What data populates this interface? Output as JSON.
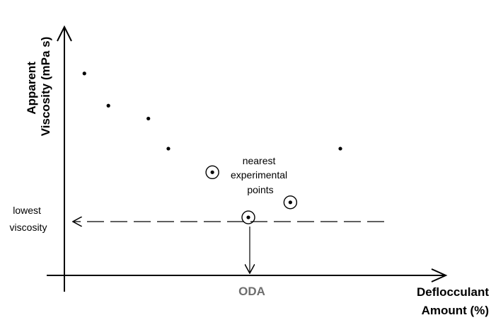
{
  "chart_data": {
    "type": "scatter",
    "title": "",
    "xlabel_lines": [
      "Deflocculant",
      "Amount (%)"
    ],
    "ylabel_lines": [
      "Apparent",
      "Viscosity (mPa s)"
    ],
    "x_tick_label": "ODA",
    "ticks_numeric": false,
    "points": [
      {
        "x": 1.0,
        "y": 9.4,
        "circled": false
      },
      {
        "x": 2.2,
        "y": 7.9,
        "circled": false
      },
      {
        "x": 4.2,
        "y": 7.3,
        "circled": false
      },
      {
        "x": 5.2,
        "y": 5.9,
        "circled": false
      },
      {
        "x": 7.4,
        "y": 4.8,
        "circled": true
      },
      {
        "x": 9.2,
        "y": 2.7,
        "circled": true
      },
      {
        "x": 11.3,
        "y": 3.4,
        "circled": true
      },
      {
        "x": 13.8,
        "y": 5.9,
        "circled": false
      }
    ],
    "annotations": {
      "nearest_lines": [
        "nearest",
        "experimental",
        "points"
      ],
      "lowest_lines": [
        "lowest",
        "viscosity"
      ]
    },
    "xlim": [
      0,
      19
    ],
    "ylim": [
      0,
      11.5
    ],
    "grid": false,
    "colors": {
      "points": "#000000",
      "oda": "#6e6e6e",
      "lines": "#000000"
    }
  }
}
